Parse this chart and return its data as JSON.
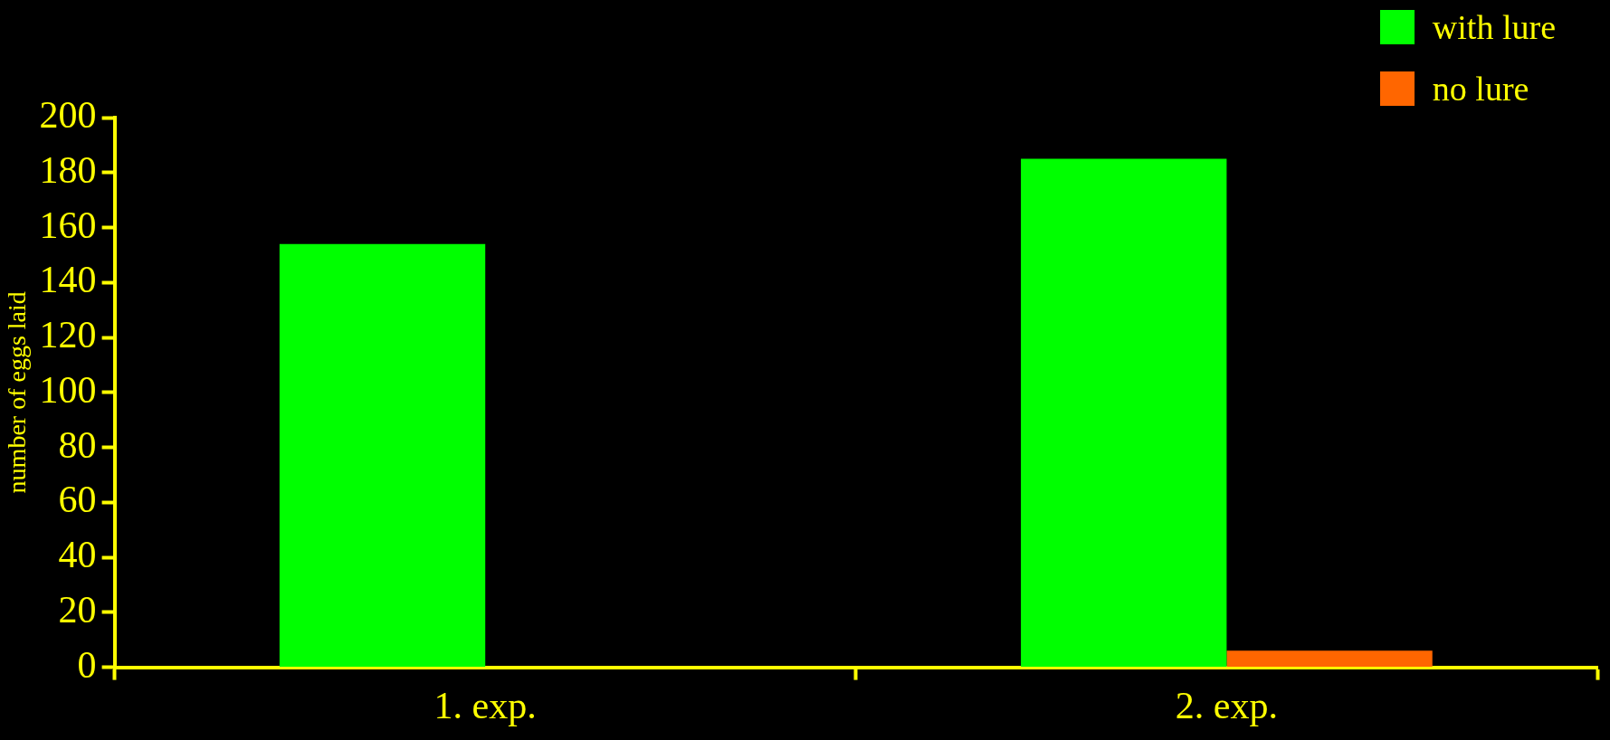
{
  "chart_data": {
    "type": "bar",
    "ylabel": "number of eggs laid",
    "categories": [
      "1. exp.",
      "2. exp."
    ],
    "series": [
      {
        "name": "with lure",
        "color": "#00ff00",
        "values": [
          154,
          185
        ]
      },
      {
        "name": "no lure",
        "color": "#ff6600",
        "values": [
          0,
          6
        ]
      }
    ],
    "ylim": [
      0,
      200
    ],
    "yticks": [
      0,
      20,
      40,
      60,
      80,
      100,
      120,
      140,
      160,
      180,
      200
    ],
    "grid": false,
    "legend": "top right"
  }
}
